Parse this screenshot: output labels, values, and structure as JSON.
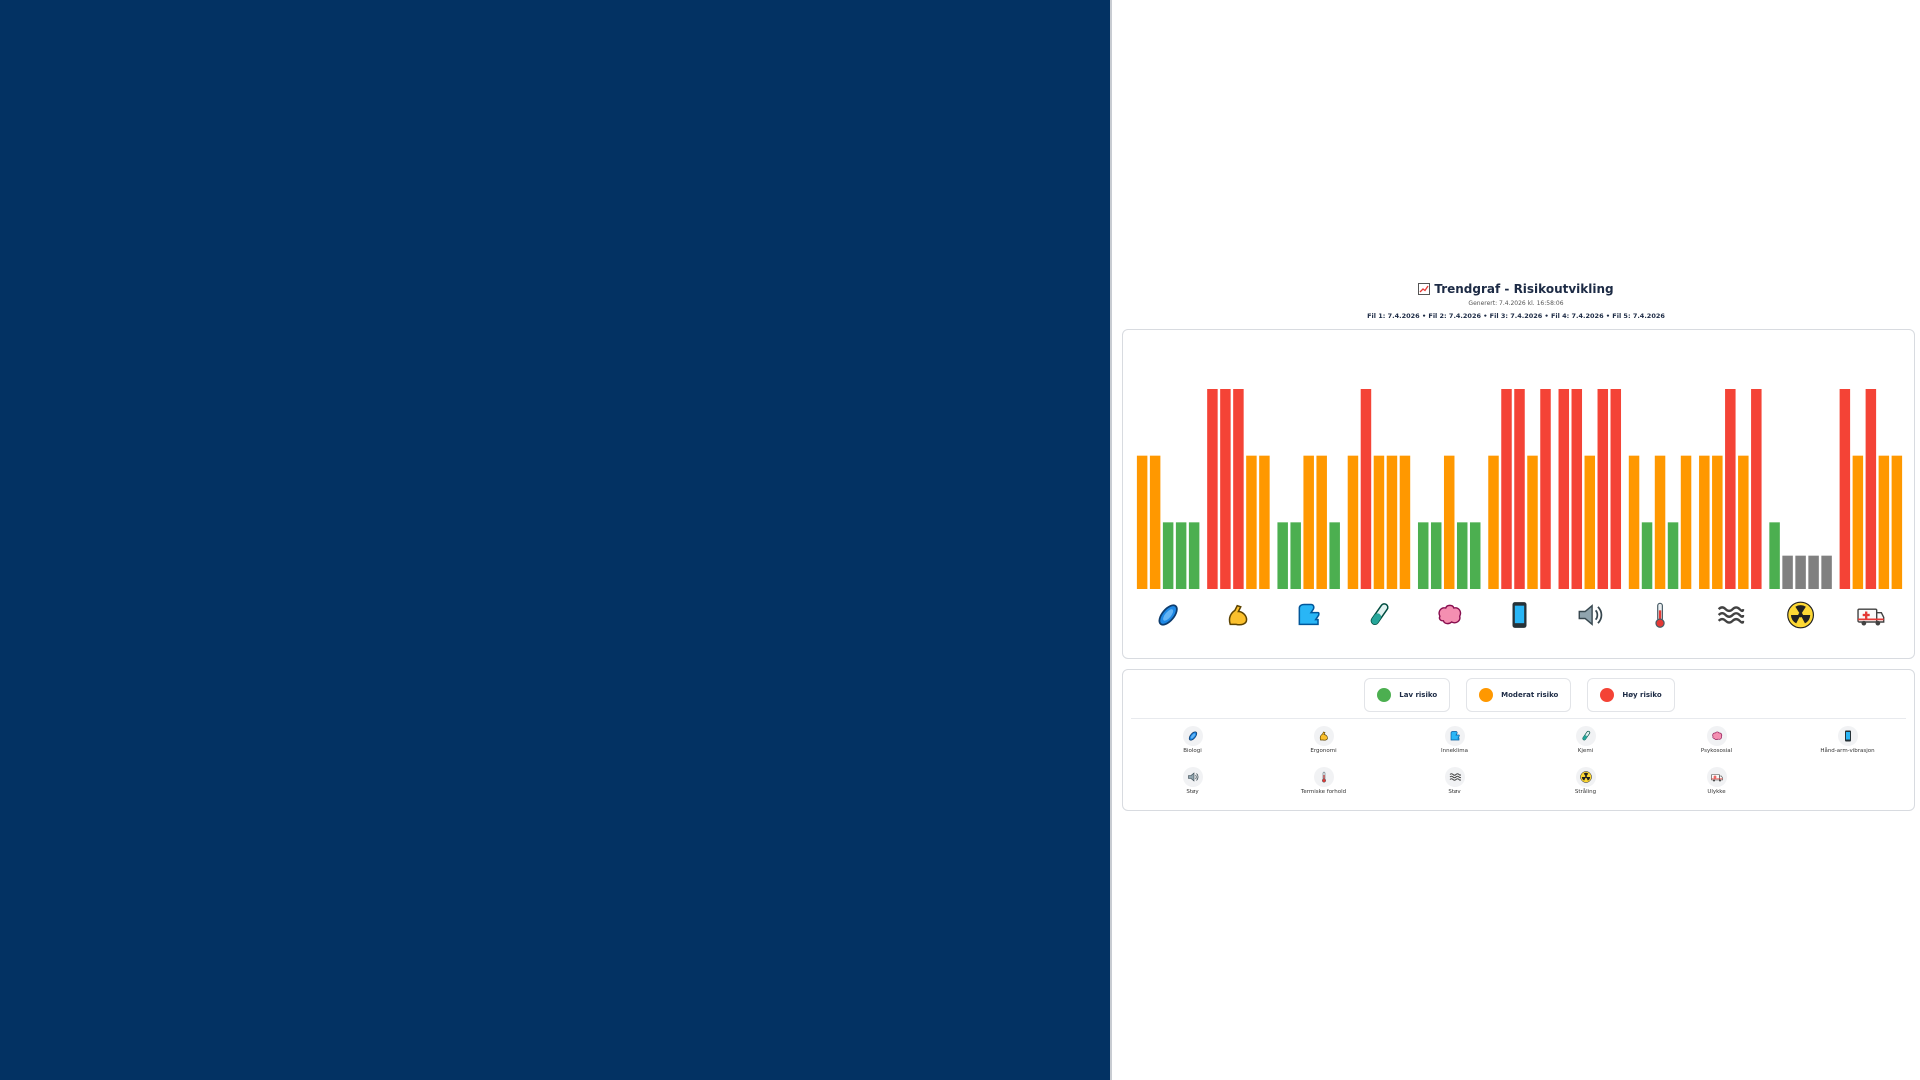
{
  "header": {
    "title": "Trendgraf - Risikoutvikling",
    "generated": "Generert: 7.4.2026 kl. 16:58:06",
    "files": "Fil 1: 7.4.2026 • Fil 2: 7.4.2026 • Fil 3: 7.4.2026 • Fil 4: 7.4.2026 • Fil 5: 7.4.2026"
  },
  "colors": {
    "low": "#4caf50",
    "moderate": "#ff9800",
    "high": "#f44336",
    "none": "#808080",
    "left_bg": "#033263"
  },
  "legend": [
    {
      "label": "Lav risiko",
      "level": "low"
    },
    {
      "label": "Moderat risiko",
      "level": "moderate"
    },
    {
      "label": "Høy risiko",
      "level": "high"
    }
  ],
  "chart_data": {
    "type": "bar",
    "title": "Trendgraf - Risikoutvikling",
    "level_values": {
      "none": 0.5,
      "low": 1,
      "moderate": 2,
      "high": 3
    },
    "ylim": [
      0,
      3
    ],
    "series_names": [
      "Fil 1",
      "Fil 2",
      "Fil 3",
      "Fil 4",
      "Fil 5"
    ],
    "categories": [
      {
        "name": "Biologi",
        "icon": "microbe-icon",
        "levels": [
          "moderate",
          "moderate",
          "low",
          "low",
          "low"
        ]
      },
      {
        "name": "Ergonomi",
        "icon": "flexed-biceps-icon",
        "levels": [
          "high",
          "high",
          "high",
          "moderate",
          "moderate"
        ]
      },
      {
        "name": "Inneklima",
        "icon": "airflow-icon",
        "levels": [
          "low",
          "low",
          "moderate",
          "moderate",
          "low"
        ]
      },
      {
        "name": "Kjemi",
        "icon": "test-tube-icon",
        "levels": [
          "moderate",
          "high",
          "moderate",
          "moderate",
          "moderate"
        ]
      },
      {
        "name": "Psykososial",
        "icon": "brain-icon",
        "levels": [
          "low",
          "low",
          "moderate",
          "low",
          "low"
        ]
      },
      {
        "name": "Hånd-arm-vibrasjon",
        "icon": "mobile-phone-icon",
        "levels": [
          "moderate",
          "high",
          "high",
          "moderate",
          "high"
        ]
      },
      {
        "name": "Støy",
        "icon": "speaker-icon",
        "levels": [
          "high",
          "high",
          "moderate",
          "high",
          "high"
        ]
      },
      {
        "name": "Termiske forhold",
        "icon": "thermometer-icon",
        "levels": [
          "moderate",
          "low",
          "moderate",
          "low",
          "moderate"
        ]
      },
      {
        "name": "Støv",
        "icon": "dust-waves-icon",
        "levels": [
          "moderate",
          "moderate",
          "high",
          "moderate",
          "high"
        ]
      },
      {
        "name": "Stråling",
        "icon": "radioactive-icon",
        "levels": [
          "low",
          "none",
          "none",
          "none",
          "none"
        ]
      },
      {
        "name": "Ulykke",
        "icon": "ambulance-icon",
        "levels": [
          "high",
          "moderate",
          "high",
          "moderate",
          "moderate"
        ]
      }
    ]
  }
}
